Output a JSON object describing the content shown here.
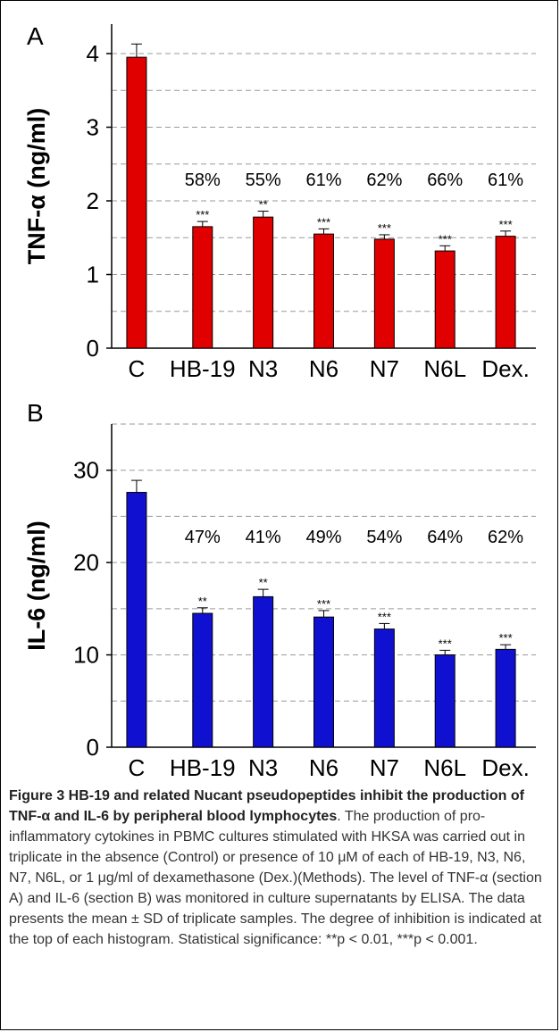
{
  "chart_data": [
    {
      "type": "bar",
      "panel_label": "A",
      "ylabel": "TNF-α (ng/ml)",
      "ylim": [
        0,
        4.4
      ],
      "yticks": [
        0,
        1,
        2,
        3,
        4
      ],
      "categories": [
        "C",
        "HB-19",
        "N3",
        "N6",
        "N7",
        "N6L",
        "Dex."
      ],
      "values": [
        3.95,
        1.65,
        1.78,
        1.55,
        1.48,
        1.32,
        1.52
      ],
      "errors": [
        0.18,
        0.07,
        0.08,
        0.07,
        0.06,
        0.07,
        0.07
      ],
      "significance": [
        "",
        "***",
        "**",
        "***",
        "***",
        "***",
        "***"
      ],
      "inhibition": [
        "",
        "58%",
        "55%",
        "61%",
        "62%",
        "66%",
        "61%"
      ],
      "color": "#e00000",
      "grid": "dashed horizontal"
    },
    {
      "type": "bar",
      "panel_label": "B",
      "ylabel": "IL-6 (ng/ml)",
      "ylim": [
        0,
        35
      ],
      "yticks": [
        0,
        10,
        20,
        30
      ],
      "categories": [
        "C",
        "HB-19",
        "N3",
        "N6",
        "N7",
        "N6L",
        "Dex."
      ],
      "values": [
        27.6,
        14.5,
        16.3,
        14.1,
        12.8,
        10.0,
        10.6
      ],
      "errors": [
        1.3,
        0.6,
        0.8,
        0.7,
        0.6,
        0.5,
        0.5
      ],
      "significance": [
        "",
        "**",
        "**",
        "***",
        "***",
        "***",
        "***"
      ],
      "inhibition": [
        "",
        "47%",
        "41%",
        "49%",
        "54%",
        "64%",
        "62%"
      ],
      "color": "#1010d0",
      "grid": "dashed horizontal"
    }
  ],
  "caption": {
    "title": "Figure 3 HB-19 and related Nucant pseudopeptides inhibit the production of TNF-α and IL-6 by peripheral blood lymphocytes",
    "body": ". The production of pro-inflammatory cytokines in PBMC cultures stimulated with HKSA was carried out in triplicate in the absence (Control) or presence of 10 μM of each of HB-19, N3, N6, N7, N6L, or 1 μg/ml of dexamethasone (Dex.)(Methods). The level of TNF-α (section A) and IL-6 (section B) was monitored in culture supernatants by ELISA. The data presents the mean ± SD of triplicate samples. The degree of inhibition is indicated at the top of each histogram. Statistical significance: **p < 0.01, ***p < 0.001."
  }
}
